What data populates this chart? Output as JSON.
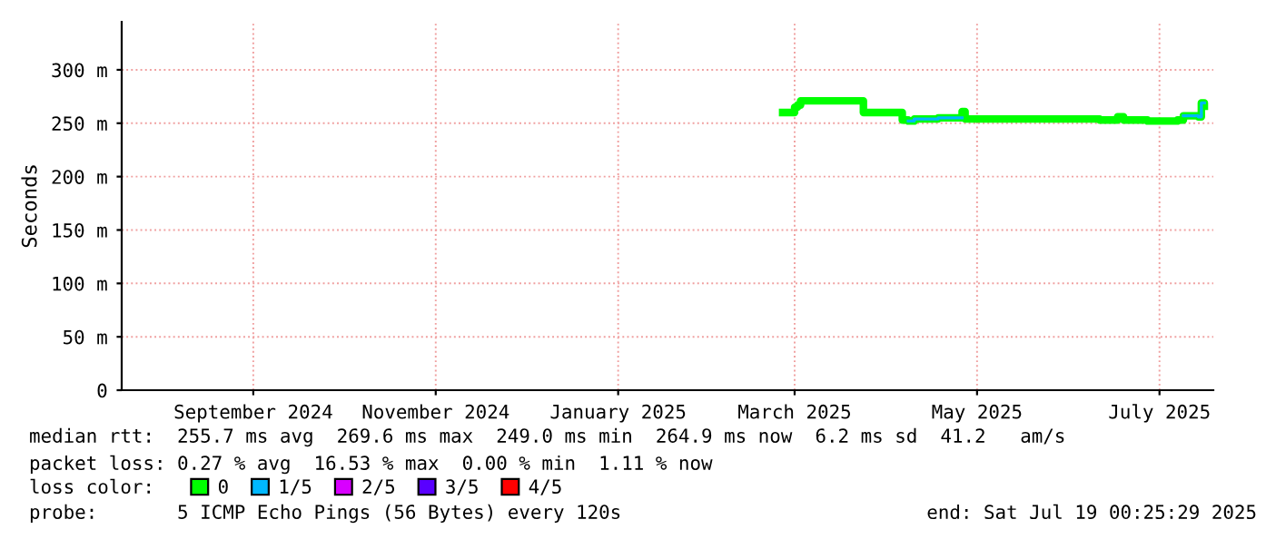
{
  "chart_data": {
    "type": "step",
    "ylabel": "Seconds",
    "x": [
      "2025-02-25",
      "2025-02-28",
      "2025-03-01",
      "2025-03-02",
      "2025-03-03",
      "2025-03-23",
      "2025-03-24",
      "2025-04-04",
      "2025-04-06",
      "2025-04-08",
      "2025-04-10",
      "2025-04-18",
      "2025-04-26",
      "2025-04-27",
      "2025-05-08",
      "2025-05-18",
      "2025-06-01",
      "2025-06-11",
      "2025-06-17",
      "2025-06-19",
      "2025-06-27",
      "2025-07-07",
      "2025-07-09",
      "2025-07-14",
      "2025-07-15",
      "2025-07-16"
    ],
    "series": [
      {
        "name": "0",
        "color": "#00ff00",
        "values": [
          260,
          260,
          265,
          267,
          271,
          271,
          260,
          260,
          253,
          252,
          254,
          255,
          261,
          254,
          254,
          254,
          254,
          253,
          256,
          253,
          252,
          253,
          257,
          256,
          269,
          266
        ]
      },
      {
        "name": "1/5",
        "color": "#00b8ff",
        "values": [
          null,
          null,
          null,
          null,
          null,
          null,
          null,
          null,
          null,
          252,
          254,
          255,
          null,
          null,
          null,
          null,
          null,
          null,
          null,
          null,
          null,
          null,
          257,
          256,
          269,
          null
        ]
      },
      {
        "name": "2/5",
        "color": "#d800ff",
        "values": [
          null,
          null,
          null,
          null,
          null,
          null,
          null,
          null,
          null,
          null,
          null,
          null,
          null,
          null,
          null,
          null,
          null,
          null,
          null,
          null,
          null,
          null,
          null,
          null,
          null,
          null
        ]
      },
      {
        "name": "3/5",
        "color": "#5900ff",
        "values": [
          null,
          null,
          null,
          null,
          null,
          null,
          null,
          null,
          null,
          null,
          null,
          null,
          null,
          null,
          null,
          null,
          null,
          null,
          null,
          null,
          null,
          null,
          null,
          null,
          null,
          null
        ]
      },
      {
        "name": "4/5",
        "color": "#ff0000",
        "values": [
          null,
          null,
          null,
          null,
          null,
          null,
          null,
          null,
          null,
          null,
          null,
          null,
          null,
          null,
          null,
          null,
          null,
          null,
          null,
          null,
          null,
          null,
          null,
          null,
          null,
          null
        ]
      }
    ],
    "xlim": [
      "2024-07-19",
      "2025-07-19"
    ],
    "xticks": [
      {
        "value": "2024-09-01",
        "label": "September 2024"
      },
      {
        "value": "2024-11-01",
        "label": "November 2024"
      },
      {
        "value": "2025-01-01",
        "label": "January 2025"
      },
      {
        "value": "2025-03-01",
        "label": "March 2025"
      },
      {
        "value": "2025-05-01",
        "label": "May 2025"
      },
      {
        "value": "2025-07-01",
        "label": "July 2025"
      }
    ],
    "ylim": [
      0,
      345
    ],
    "yticks": [
      0,
      {
        "value": 50,
        "label": "50 m"
      },
      {
        "value": 100,
        "label": "100 m"
      },
      {
        "value": 150,
        "label": "150 m"
      },
      {
        "value": 200,
        "label": "200 m"
      },
      {
        "value": 250,
        "label": "250 m"
      },
      {
        "value": 300,
        "label": "300 m"
      }
    ],
    "grid": true,
    "legend": "bottom",
    "annotations": [
      "median rtt:  255.7 ms avg  269.6 ms max  249.0 ms min  264.9 ms now  6.2 ms sd  41.2   am/s",
      "packet loss: 0.27 % avg  16.53 % max  0.00 % min  1.11 % now",
      "loss color:",
      "probe:       5 ICMP Echo Pings (56 Bytes) every 120s",
      "end: Sat Jul 19 00:25:29 2025"
    ]
  }
}
